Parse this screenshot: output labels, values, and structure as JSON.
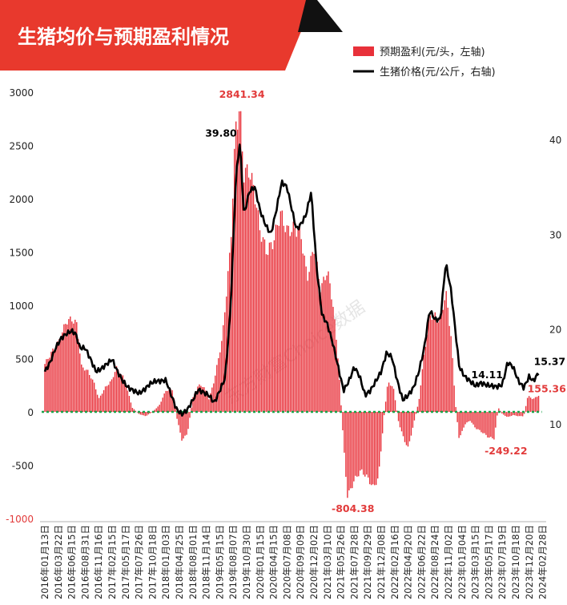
{
  "title": "生猪均价与预期盈利情况",
  "watermark": "东方财富Choice数据",
  "colors": {
    "banner": "#e8392d",
    "banner_dark": "#111111",
    "bar": "#e8313a",
    "line": "#000000",
    "zero_line": "#1aa34a",
    "label_red": "#e23b3b",
    "axis_text": "#222222"
  },
  "chart_data": {
    "type": "bar+line",
    "legend": [
      {
        "name": "预期盈利(元/头，左轴)",
        "kind": "bar"
      },
      {
        "name": "生猪价格(元/公斤，右轴)",
        "kind": "line"
      }
    ],
    "legend_placement": "top-right",
    "left_axis": {
      "min": -1000,
      "max": 3000,
      "ticks": [
        "3000",
        "2500",
        "2000",
        "1500",
        "1000",
        "500",
        "0",
        "-500",
        "-1000"
      ],
      "unit": "元/头"
    },
    "right_axis": {
      "min": 0,
      "max": 45,
      "ticks": [
        "10",
        "20",
        "30",
        "40"
      ],
      "unit": "元/公斤"
    },
    "x_tick_labels": [
      "2016年01月13日",
      "2016年03月22日",
      "2016年06月15日",
      "2016年08月31日",
      "2016年11月16日",
      "2017年02月15日",
      "2017年05月17日",
      "2017年07月26日",
      "2017年10月18日",
      "2018年01月03日",
      "2018年04月25日",
      "2018年08月01日",
      "2018年11月14日",
      "2019年05月15日",
      "2019年08月07日",
      "2019年10月30日",
      "2020年01月15日",
      "2020年04月15日",
      "2020年07月08日",
      "2020年09月09日",
      "2020年12月02日",
      "2021年03月10日",
      "2021年05月26日",
      "2021年07月28日",
      "2021年09月29日",
      "2021年12月08日",
      "2022年02月16日",
      "2022年04月20日",
      "2022年06月22日",
      "2022年08月24日",
      "2022年11月02日",
      "2023年01月04日",
      "2023年03月15日",
      "2023年05月17日",
      "2023年07月19日",
      "2023年10月18日",
      "2023年12月20日",
      "2024年02月28日"
    ],
    "profit_keypoints": [
      [
        0,
        450
      ],
      [
        0.5,
        560
      ],
      [
        1,
        650
      ],
      [
        1.6,
        850
      ],
      [
        2,
        870
      ],
      [
        2.4,
        820
      ],
      [
        2.7,
        430
      ],
      [
        3.2,
        380
      ],
      [
        3.7,
        260
      ],
      [
        4.0,
        120
      ],
      [
        4.5,
        230
      ],
      [
        5,
        300
      ],
      [
        5.3,
        420
      ],
      [
        5.8,
        330
      ],
      [
        6.2,
        180
      ],
      [
        6.5,
        40
      ],
      [
        7,
        -20
      ],
      [
        7.5,
        -40
      ],
      [
        8,
        0
      ],
      [
        8.5,
        60
      ],
      [
        9,
        200
      ],
      [
        9.5,
        210
      ],
      [
        9.8,
        -50
      ],
      [
        10.2,
        -270
      ],
      [
        10.6,
        -200
      ],
      [
        11,
        130
      ],
      [
        11.4,
        250
      ],
      [
        11.8,
        240
      ],
      [
        12.2,
        120
      ],
      [
        12.6,
        300
      ],
      [
        13.2,
        700
      ],
      [
        13.8,
        1550
      ],
      [
        14.2,
        2700
      ],
      [
        14.5,
        2840
      ],
      [
        14.8,
        2230
      ],
      [
        15.2,
        2270
      ],
      [
        15.6,
        2050
      ],
      [
        16,
        1700
      ],
      [
        16.5,
        1500
      ],
      [
        17,
        1600
      ],
      [
        17.5,
        1870
      ],
      [
        18,
        1700
      ],
      [
        18.5,
        1720
      ],
      [
        19,
        1700
      ],
      [
        19.5,
        1250
      ],
      [
        20,
        1550
      ],
      [
        20.5,
        1150
      ],
      [
        21,
        1330
      ],
      [
        21.4,
        1030
      ],
      [
        21.8,
        500
      ],
      [
        22.2,
        -300
      ],
      [
        22.5,
        -800
      ],
      [
        23,
        -640
      ],
      [
        23.5,
        -550
      ],
      [
        24,
        -620
      ],
      [
        24.4,
        -710
      ],
      [
        24.8,
        -620
      ],
      [
        25.2,
        -50
      ],
      [
        25.5,
        280
      ],
      [
        25.9,
        230
      ],
      [
        26.3,
        -100
      ],
      [
        26.7,
        -260
      ],
      [
        27,
        -340
      ],
      [
        27.4,
        -120
      ],
      [
        27.8,
        100
      ],
      [
        28.2,
        550
      ],
      [
        28.6,
        900
      ],
      [
        29,
        900
      ],
      [
        29.4,
        850
      ],
      [
        29.8,
        1130
      ],
      [
        30.2,
        700
      ],
      [
        30.5,
        100
      ],
      [
        30.8,
        -260
      ],
      [
        31.2,
        -120
      ],
      [
        31.6,
        -80
      ],
      [
        32,
        -150
      ],
      [
        32.5,
        -190
      ],
      [
        33,
        -240
      ],
      [
        33.4,
        -250
      ],
      [
        33.7,
        40
      ],
      [
        34,
        -20
      ],
      [
        34.4,
        -50
      ],
      [
        34.8,
        -30
      ],
      [
        35.2,
        -40
      ],
      [
        35.6,
        -40
      ],
      [
        35.9,
        150
      ],
      [
        36.3,
        120
      ],
      [
        36.7,
        155
      ]
    ],
    "price_keypoints": [
      [
        0,
        15.5
      ],
      [
        0.4,
        16.5
      ],
      [
        0.8,
        18.0
      ],
      [
        1.2,
        19.0
      ],
      [
        1.6,
        19.5
      ],
      [
        2,
        19.8
      ],
      [
        2.3,
        19.5
      ],
      [
        2.6,
        18.0
      ],
      [
        3,
        18.0
      ],
      [
        3.4,
        16.8
      ],
      [
        3.8,
        15.5
      ],
      [
        4.2,
        15.8
      ],
      [
        4.6,
        16.3
      ],
      [
        5,
        16.8
      ],
      [
        5.4,
        15.5
      ],
      [
        5.8,
        14.5
      ],
      [
        6.2,
        13.8
      ],
      [
        6.6,
        13.5
      ],
      [
        7,
        13.2
      ],
      [
        7.4,
        13.6
      ],
      [
        7.8,
        14.2
      ],
      [
        8.2,
        14.5
      ],
      [
        8.6,
        14.5
      ],
      [
        9,
        14.6
      ],
      [
        9.4,
        13.0
      ],
      [
        9.8,
        11.5
      ],
      [
        10.2,
        11.0
      ],
      [
        10.6,
        11.5
      ],
      [
        11,
        12.5
      ],
      [
        11.4,
        13.6
      ],
      [
        11.8,
        13.3
      ],
      [
        12.2,
        13.0
      ],
      [
        12.6,
        12.2
      ],
      [
        13,
        13.5
      ],
      [
        13.4,
        14.8
      ],
      [
        13.8,
        22.0
      ],
      [
        14.2,
        36.0
      ],
      [
        14.5,
        39.8
      ],
      [
        14.8,
        32.0
      ],
      [
        15.2,
        34.5
      ],
      [
        15.6,
        35.0
      ],
      [
        16,
        32.5
      ],
      [
        16.4,
        31.0
      ],
      [
        16.8,
        30.0
      ],
      [
        17.2,
        32.5
      ],
      [
        17.6,
        35.5
      ],
      [
        18,
        35.0
      ],
      [
        18.3,
        33.0
      ],
      [
        18.7,
        30.5
      ],
      [
        19,
        31.0
      ],
      [
        19.4,
        32.0
      ],
      [
        19.8,
        34.5
      ],
      [
        20.2,
        26.5
      ],
      [
        20.6,
        21.5
      ],
      [
        21,
        20.5
      ],
      [
        21.4,
        18.5
      ],
      [
        21.8,
        16.0
      ],
      [
        22.2,
        13.5
      ],
      [
        22.6,
        14.5
      ],
      [
        23,
        16.0
      ],
      [
        23.4,
        15.0
      ],
      [
        23.8,
        13.0
      ],
      [
        24.2,
        13.5
      ],
      [
        24.6,
        14.5
      ],
      [
        25,
        15.5
      ],
      [
        25.4,
        17.5
      ],
      [
        25.8,
        17.0
      ],
      [
        26.2,
        14.5
      ],
      [
        26.6,
        12.5
      ],
      [
        27,
        13.0
      ],
      [
        27.4,
        13.8
      ],
      [
        27.8,
        15.5
      ],
      [
        28.2,
        18.0
      ],
      [
        28.6,
        22.0
      ],
      [
        29,
        21.0
      ],
      [
        29.4,
        21.0
      ],
      [
        29.8,
        27.0
      ],
      [
        30.2,
        24.0
      ],
      [
        30.5,
        20.0
      ],
      [
        30.8,
        16.0
      ],
      [
        31.2,
        15.0
      ],
      [
        31.6,
        14.5
      ],
      [
        32,
        14.0
      ],
      [
        32.4,
        14.3
      ],
      [
        32.8,
        14.1
      ],
      [
        33.2,
        14.0
      ],
      [
        33.6,
        13.9
      ],
      [
        34,
        14.11
      ],
      [
        34.4,
        16.5
      ],
      [
        34.8,
        16.0
      ],
      [
        35.2,
        14.5
      ],
      [
        35.6,
        13.8
      ],
      [
        36,
        15.0
      ],
      [
        36.3,
        14.5
      ],
      [
        36.7,
        15.37
      ]
    ],
    "annotations": [
      {
        "text": "2841.34",
        "series": "profit",
        "x_index": 14.5
      },
      {
        "text": "39.80",
        "series": "price",
        "x_index": 14.3
      },
      {
        "text": "-804.38",
        "series": "profit",
        "x_index": 22.5
      },
      {
        "text": "-249.22",
        "series": "profit",
        "x_index": 33.4
      },
      {
        "text": "14.11",
        "series": "price",
        "x_index": 33.0
      },
      {
        "text": "15.37",
        "series": "price",
        "x_index": 36.7
      },
      {
        "text": "155.36",
        "series": "profit",
        "x_index": 36.7
      }
    ]
  }
}
